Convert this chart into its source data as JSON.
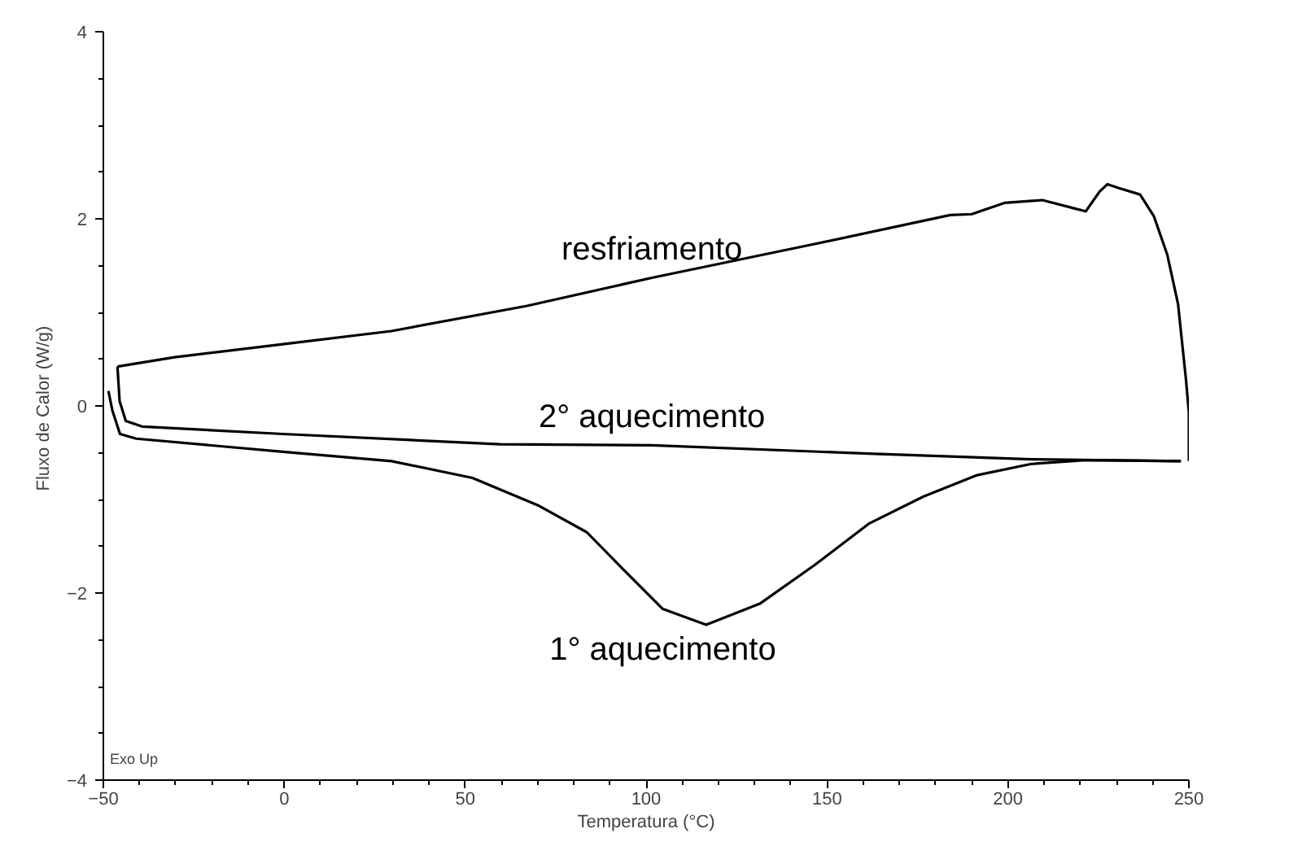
{
  "chart_data": {
    "type": "line",
    "xlabel": "Temperatura (°C)",
    "ylabel": "Fluxo de Calor  (W/g)",
    "xlim": [
      -50,
      250
    ],
    "ylim": [
      -4,
      4
    ],
    "xticks": [
      -50,
      0,
      50,
      100,
      150,
      200,
      250
    ],
    "yticks": [
      -4,
      -2,
      0,
      2,
      4
    ],
    "grid": false,
    "series": [
      {
        "name": "1° aquecimento",
        "color": "#000000",
        "x": [
          -48.6,
          -47.5,
          -45.4,
          -40.9,
          -0.4,
          29.6,
          52,
          70,
          83.6,
          94,
          104.6,
          116.6,
          131.6,
          146.6,
          161.5,
          176.6,
          191.5,
          206.5,
          221.5,
          247.8
        ],
        "values": [
          0.16,
          -0.05,
          -0.3,
          -0.35,
          -0.49,
          -0.59,
          -0.77,
          -1.06,
          -1.35,
          -1.76,
          -2.17,
          -2.34,
          -2.11,
          -1.7,
          -1.26,
          -0.97,
          -0.74,
          -0.62,
          -0.58,
          -0.59
        ]
      },
      {
        "name": "2° aquecimento",
        "color": "#000000",
        "x": [
          -46.1,
          -45.5,
          -43.8,
          -39.3,
          -0.4,
          59.6,
          101.6,
          161.5,
          206.5,
          247.8
        ],
        "values": [
          0.42,
          0.05,
          -0.16,
          -0.22,
          -0.3,
          -0.41,
          -0.42,
          -0.51,
          -0.57,
          -0.59
        ]
      },
      {
        "name": "resfriamento",
        "color": "#000000",
        "x": [
          250,
          250,
          249.2,
          247,
          244,
          240.3,
          236.5,
          230.5,
          227.5,
          225.3,
          221.5,
          218.5,
          209.5,
          199,
          190,
          184,
          146.5,
          101.6,
          67.1,
          29.6,
          -0.4,
          -30.3,
          -46.1
        ],
        "values": [
          -0.59,
          -0.07,
          0.28,
          1.09,
          1.62,
          2.03,
          2.26,
          2.33,
          2.37,
          2.29,
          2.08,
          2.11,
          2.2,
          2.17,
          2.05,
          2.04,
          1.73,
          1.37,
          1.07,
          0.8,
          0.66,
          0.52,
          0.42
        ]
      }
    ],
    "annotations": [
      "Exo Up"
    ]
  }
}
